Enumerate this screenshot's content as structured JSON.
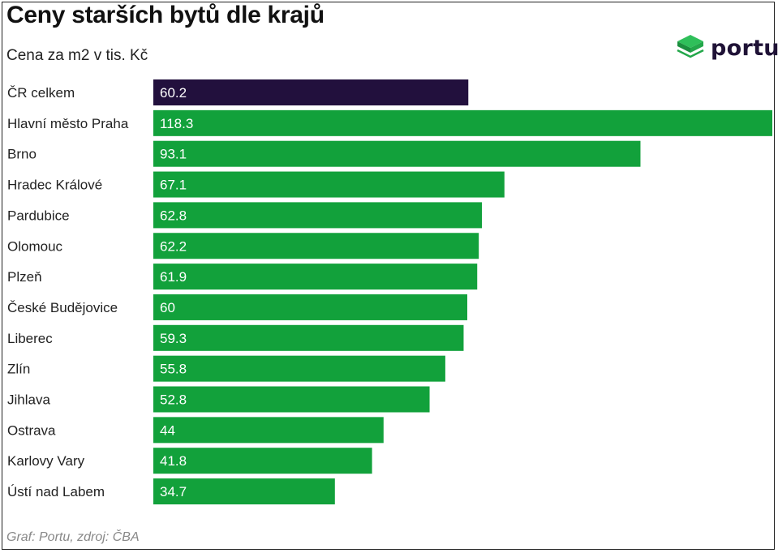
{
  "header": {
    "title": "Ceny starších bytů dle krajů",
    "subtitle": "Cena za m2 v tis. Kč"
  },
  "logo": {
    "text": "portu",
    "icon": "portu-cube-icon",
    "icon_color": "#1fa34a"
  },
  "footer": {
    "source": "Graf: Portu, zdroj: ČBA"
  },
  "colors": {
    "highlight": "#22103d",
    "bar": "#12a13b"
  },
  "chart_data": {
    "type": "bar",
    "orientation": "horizontal",
    "title": "Ceny starších bytů dle krajů",
    "subtitle": "Cena za m2 v tis. Kč",
    "xlabel": "",
    "ylabel": "",
    "xlim": [
      0,
      118.3
    ],
    "grid": false,
    "categories": [
      "ČR celkem",
      "Hlavní město Praha",
      "Brno",
      "Hradec Králové",
      "Pardubice",
      "Olomouc",
      "Plzeň",
      "České Budějovice",
      "Liberec",
      "Zlín",
      "Jihlava",
      "Ostrava",
      "Karlovy Vary",
      "Ústí nad Labem"
    ],
    "values": [
      60.2,
      118.3,
      93.1,
      67.1,
      62.8,
      62.2,
      61.9,
      60,
      59.3,
      55.8,
      52.8,
      44,
      41.8,
      34.7
    ],
    "value_labels": [
      "60.2",
      "118.3",
      "93.1",
      "67.1",
      "62.8",
      "62.2",
      "61.9",
      "60",
      "59.3",
      "55.8",
      "52.8",
      "44",
      "41.8",
      "34.7"
    ],
    "highlight_index": 0
  }
}
